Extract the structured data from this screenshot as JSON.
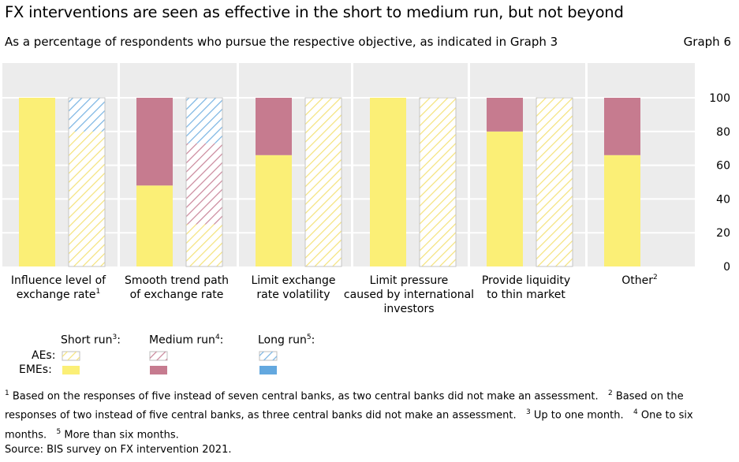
{
  "title": "FX interventions are seen as effective in the short to medium run, but not beyond",
  "subtitle": "As a percentage of respondents who pursue the respective objective, as indicated in Graph 3",
  "graph_label": "Graph 6",
  "colors": {
    "eme_short": "#fbef76",
    "eme_medium": "#c67b8f",
    "eme_long": "#63a8df",
    "ae_short_hatch": "#f4e27a",
    "ae_medium_hatch": "#c9869a",
    "ae_long_hatch": "#78b3e2",
    "panel_bg": "#ececec",
    "gridline": "#ffffff"
  },
  "chart_data": {
    "type": "bar",
    "stacked": true,
    "ylim": [
      0,
      100
    ],
    "yticks": [
      0,
      20,
      40,
      60,
      80,
      100
    ],
    "y_axis_side": "right",
    "grid": true,
    "categories": [
      {
        "label_lines": [
          "Influence level of",
          "exchange rate"
        ],
        "note": "1"
      },
      {
        "label_lines": [
          "Smooth trend path",
          "of exchange rate"
        ],
        "note": ""
      },
      {
        "label_lines": [
          "Limit exchange",
          "rate volatility"
        ],
        "note": ""
      },
      {
        "label_lines": [
          "Limit pressure",
          "caused by international",
          "investors"
        ],
        "note": ""
      },
      {
        "label_lines": [
          "Provide liquidity",
          "to thin market"
        ],
        "note": ""
      },
      {
        "label_lines": [
          "Other"
        ],
        "note": "2"
      }
    ],
    "groups": [
      {
        "name": "EMEs",
        "series": [
          {
            "name": "Short run",
            "values": [
              100,
              48,
              66,
              100,
              80,
              66
            ]
          },
          {
            "name": "Medium run",
            "values": [
              0,
              52,
              34,
              0,
              20,
              34
            ]
          },
          {
            "name": "Long run",
            "values": [
              0,
              0,
              0,
              0,
              0,
              0
            ]
          }
        ]
      },
      {
        "name": "AEs",
        "series": [
          {
            "name": "Short run",
            "values": [
              80,
              25,
              100,
              100,
              100,
              null
            ]
          },
          {
            "name": "Medium run",
            "values": [
              0,
              48,
              0,
              0,
              0,
              null
            ]
          },
          {
            "name": "Long run",
            "values": [
              20,
              27,
              0,
              0,
              0,
              null
            ]
          }
        ]
      }
    ]
  },
  "legend": {
    "short": {
      "label": "Short run",
      "note": "3"
    },
    "medium": {
      "label": "Medium run",
      "note": "4"
    },
    "long": {
      "label": "Long run",
      "note": "5"
    },
    "aes_label": "AEs:",
    "emes_label": "EMEs:"
  },
  "footnotes": [
    {
      "num": "1",
      "text": "Based on the responses of five instead of seven central banks, as two central banks did not make an assessment."
    },
    {
      "num": "2",
      "text": "Based on the responses of two instead of five central banks, as three central banks did not make an assessment."
    },
    {
      "num": "3",
      "text": "Up to one month."
    },
    {
      "num": "4",
      "text": "One to six months."
    },
    {
      "num": "5",
      "text": "More than six months."
    }
  ],
  "source": "Source: BIS survey on FX intervention 2021."
}
